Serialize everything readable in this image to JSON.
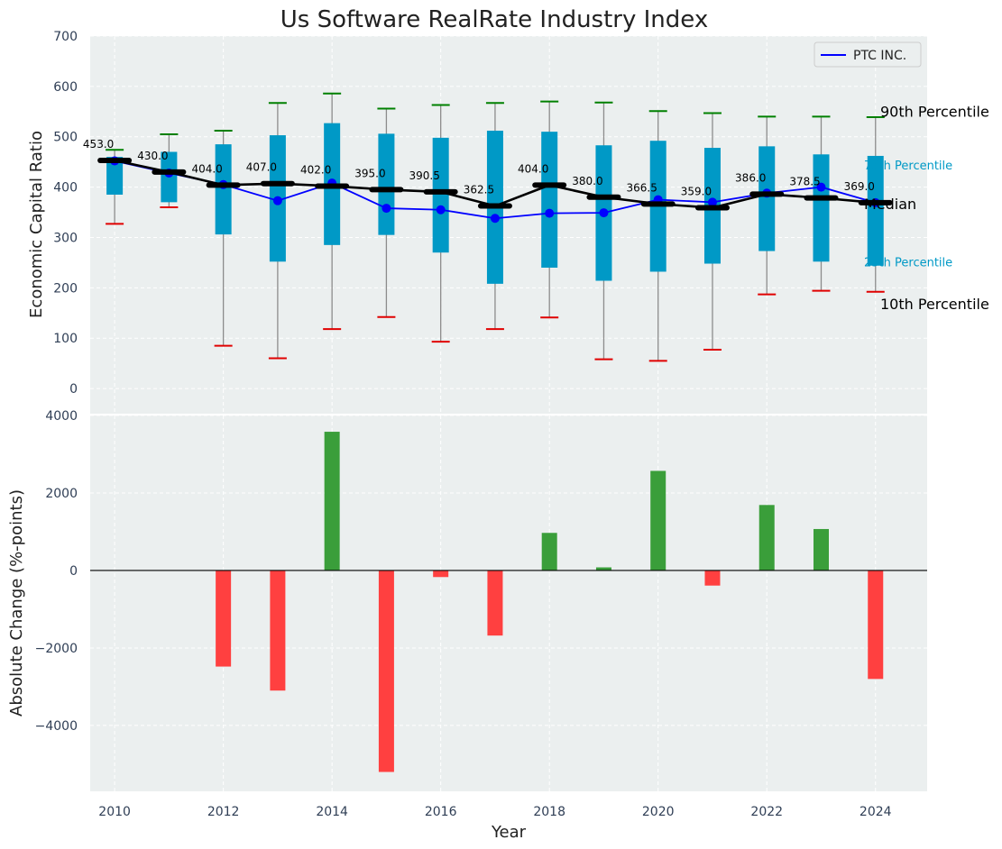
{
  "title": "Us Software RealRate Industry Index",
  "chart_data": [
    {
      "type": "box",
      "ylabel": "Economic Capital Ratio",
      "ylim": [
        -50,
        700
      ],
      "yticks": [
        0,
        100,
        200,
        300,
        400,
        500,
        600,
        700
      ],
      "grid": true,
      "legend": {
        "position": "top-right",
        "entries": [
          {
            "label": "PTC INC.",
            "color": "#0000ff"
          }
        ]
      },
      "years": [
        2010,
        2011,
        2012,
        2013,
        2014,
        2015,
        2016,
        2017,
        2018,
        2019,
        2020,
        2021,
        2022,
        2023,
        2024
      ],
      "p90": [
        474,
        505,
        512,
        567,
        586,
        556,
        563,
        567,
        570,
        568,
        551,
        547,
        540,
        540,
        539
      ],
      "p75": [
        460,
        470,
        485,
        503,
        527,
        506,
        498,
        512,
        510,
        483,
        492,
        478,
        481,
        465,
        462
      ],
      "median": [
        453,
        430,
        404,
        407,
        402,
        395,
        390.5,
        362.5,
        404,
        380,
        366.5,
        359,
        386,
        378.5,
        369
      ],
      "median_labels": [
        "453.0",
        "430.0",
        "404.0",
        "407.0",
        "402.0",
        "395.0",
        "390.5",
        "362.5",
        "404.0",
        "380.0",
        "366.5",
        "359.0",
        "386.0",
        "378.5",
        "369.0"
      ],
      "p25": [
        385,
        370,
        306,
        252,
        285,
        305,
        270,
        208,
        240,
        214,
        232,
        248,
        273,
        252,
        244
      ],
      "p10": [
        327,
        360,
        85,
        60,
        118,
        142,
        93,
        118,
        141,
        58,
        55,
        77,
        187,
        194,
        192
      ],
      "company": {
        "name": "PTC INC.",
        "values": [
          452,
          428,
          405,
          373,
          408,
          358,
          355,
          338,
          348,
          349,
          375,
          370,
          388,
          400,
          369
        ]
      },
      "annotations": {
        "p90": "90th Percentile",
        "p75": "75th Percentile",
        "median": "Median",
        "p25": "25th Percentile",
        "p10": "10th Percentile"
      },
      "colors": {
        "box": "#0099c6",
        "median": "#000000",
        "company": "#0000ff",
        "p90_cap": "#008000",
        "p10_cap": "#e00000"
      }
    },
    {
      "type": "bar",
      "ylabel": "Absolute Change (%-points)",
      "xlabel": "Year",
      "ylim": [
        -5700,
        4000
      ],
      "yticks": [
        -4000,
        -2000,
        0,
        2000,
        4000
      ],
      "ytick_labels": [
        "−4000",
        "−2000",
        "0",
        "2000",
        "4000"
      ],
      "xticks": [
        2010,
        2012,
        2014,
        2016,
        2018,
        2020,
        2022,
        2024
      ],
      "categories": [
        2010,
        2011,
        2012,
        2013,
        2014,
        2015,
        2016,
        2017,
        2018,
        2019,
        2020,
        2021,
        2022,
        2023,
        2024
      ],
      "values": [
        0,
        0,
        -2480,
        -3100,
        3580,
        -5200,
        -170,
        -1680,
        970,
        80,
        2570,
        -390,
        1690,
        1070,
        -2800
      ],
      "colors": {
        "positive": "#3a9e3a",
        "negative": "#ff4040"
      }
    }
  ]
}
